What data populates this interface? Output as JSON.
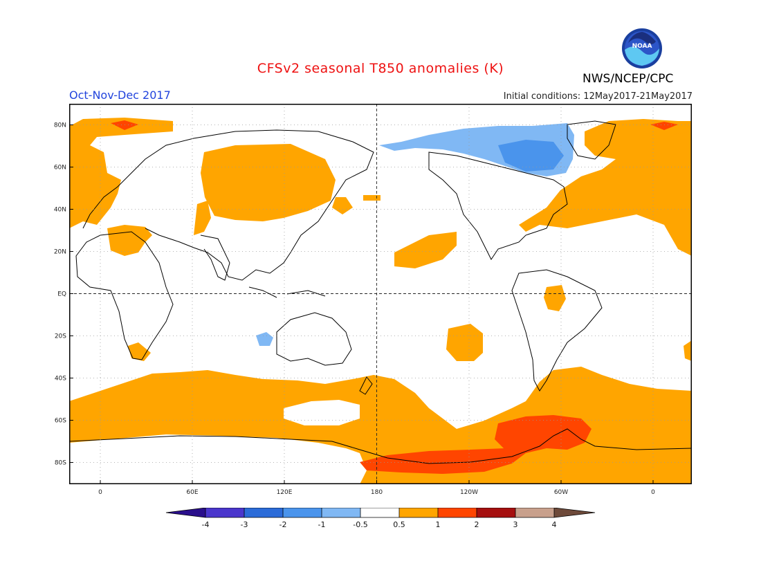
{
  "header": {
    "title": "CFSv2 seasonal T850 anomalies (K)",
    "season": "Oct-Nov-Dec 2017",
    "initial_conditions": "Initial conditions: 12May2017-21May2017",
    "organization": "NWS/NCEP/CPC",
    "logo_text": "NOAA"
  },
  "map": {
    "projection": "cylindrical equidistant",
    "lat_labels": [
      "80N",
      "60N",
      "40N",
      "20N",
      "EQ",
      "20S",
      "40S",
      "60S",
      "80S"
    ],
    "lon_labels": [
      "0",
      "60E",
      "120E",
      "180",
      "120W",
      "60W",
      "0"
    ],
    "grid": "dotted",
    "reference_lines": [
      "EQ",
      "180"
    ]
  },
  "legend": {
    "ticks": [
      "-4",
      "-3",
      "-2",
      "-1",
      "-0.5",
      "0.5",
      "1",
      "2",
      "3",
      "4"
    ],
    "colors": {
      "lt_minus4": "#2a0f8c",
      "minus4_minus3": "#4a36cc",
      "minus3_minus2": "#2b6bd8",
      "minus2_minus1": "#4a94ec",
      "minus1_minus05": "#80b8f4",
      "neutral": "#ffffff",
      "p05_1": "#ffa500",
      "p1_2": "#ff4500",
      "p2_3": "#a50f0f",
      "p3_4": "#c8a08c",
      "gt4": "#6e4a3a"
    }
  }
}
